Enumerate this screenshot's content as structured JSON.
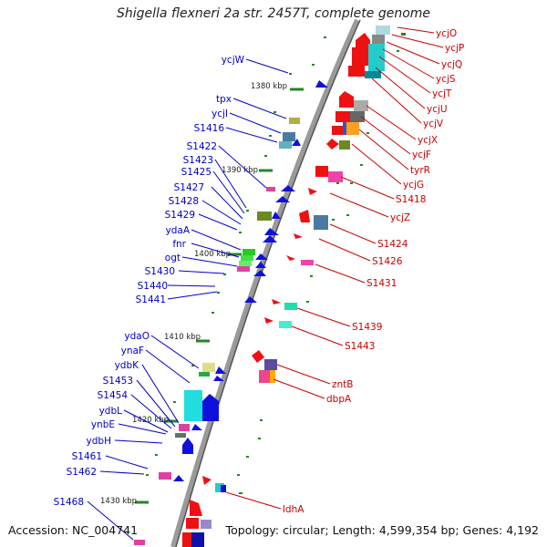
{
  "title": "Shigella flexneri 2a str. 2457T, complete genome",
  "footer": {
    "accession": "Accession: NC_004741",
    "topology": "Topology: circular; Length: 4,599,354 bp; Genes: 4,192"
  },
  "colors": {
    "axis": "#555555",
    "left_label": "#0000cc",
    "right_label": "#cc0000",
    "tick": "#228822"
  },
  "ticks": [
    "1380 kbp",
    "1390 kbp",
    "1400 kbp",
    "1410 kbp",
    "1420 kbp",
    "1430 kbp"
  ],
  "left_labels": [
    "ycjW",
    "tpx",
    "ycjI",
    "S1416",
    "S1422",
    "S1423",
    "S1425",
    "S1427",
    "S1428",
    "S1429",
    "ydaA",
    "fnr",
    "ogt",
    "S1430",
    "S1440",
    "S1441",
    "ydaO",
    "ynaF",
    "ydbK",
    "S1453",
    "S1454",
    "ydbL",
    "ynbE",
    "ydbH",
    "S1461",
    "S1462",
    "S1468"
  ],
  "right_labels": [
    "ycjO",
    "ycjP",
    "ycjQ",
    "ycjS",
    "ycjT",
    "ycjU",
    "ycjV",
    "ycjX",
    "ycjF",
    "tyrR",
    "ycjG",
    "S1418",
    "ycjZ",
    "S1424",
    "S1426",
    "S1431",
    "S1439",
    "S1443",
    "zntB",
    "dbpA",
    "ldhA"
  ]
}
